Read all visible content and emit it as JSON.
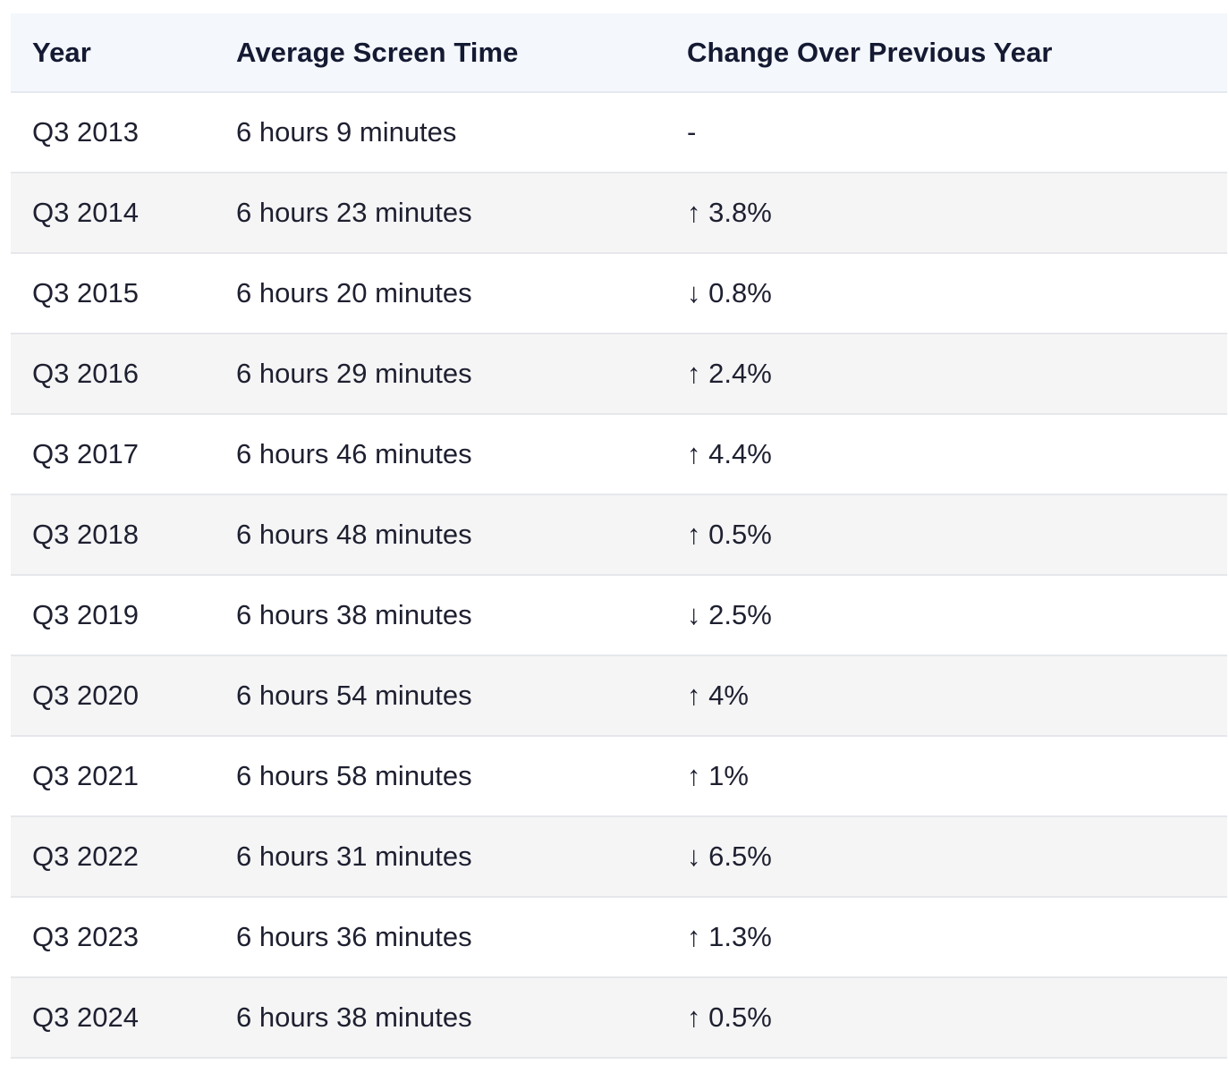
{
  "table": {
    "headers": [
      "Year",
      "Average Screen Time",
      "Change Over Previous Year"
    ],
    "rows": [
      [
        "Q3 2013",
        "6 hours 9 minutes",
        "-"
      ],
      [
        "Q3 2014",
        "6 hours 23 minutes",
        "↑ 3.8%"
      ],
      [
        "Q3 2015",
        "6 hours 20 minutes",
        "↓ 0.8%"
      ],
      [
        "Q3 2016",
        "6 hours 29 minutes",
        "↑ 2.4%"
      ],
      [
        "Q3 2017",
        "6 hours 46 minutes",
        "↑ 4.4%"
      ],
      [
        "Q3 2018",
        "6 hours 48 minutes",
        "↑ 0.5%"
      ],
      [
        "Q3 2019",
        "6 hours 38 minutes",
        "↓ 2.5%"
      ],
      [
        "Q3 2020",
        "6 hours 54 minutes",
        "↑ 4%"
      ],
      [
        "Q3 2021",
        "6 hours 58 minutes",
        "↑ 1%"
      ],
      [
        "Q3 2022",
        "6 hours 31 minutes",
        "↓ 6.5%"
      ],
      [
        "Q3 2023",
        "6 hours 36 minutes",
        "↑ 1.3%"
      ],
      [
        "Q3 2024",
        "6 hours 38 minutes",
        "↑ 0.5%"
      ]
    ]
  }
}
